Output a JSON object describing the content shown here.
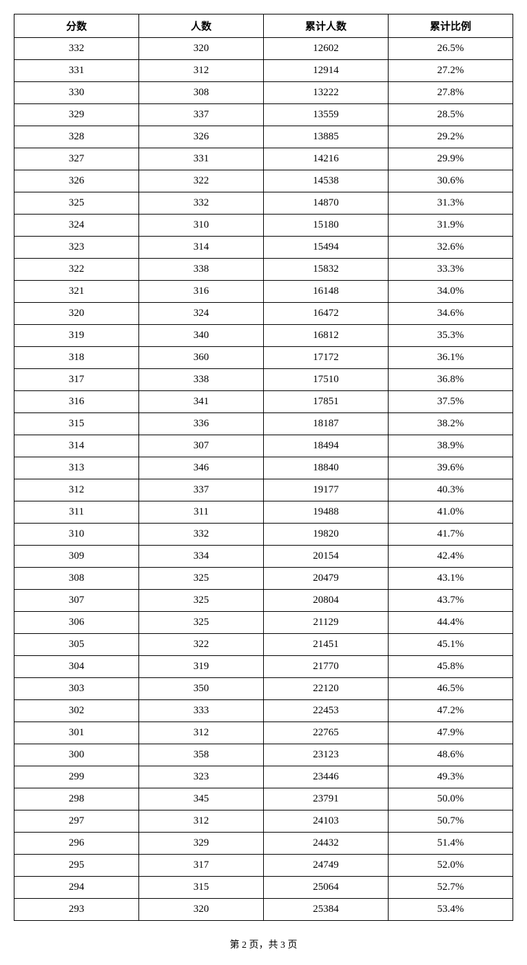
{
  "table": {
    "columns": [
      "分数",
      "人数",
      "累计人数",
      "累计比例"
    ],
    "column_widths": [
      "25%",
      "25%",
      "25%",
      "25%"
    ],
    "text_color": "#000000",
    "border_color": "#000000",
    "background_color": "#ffffff",
    "header_fontsize": 15,
    "cell_fontsize": 15,
    "rows": [
      [
        "332",
        "320",
        "12602",
        "26.5%"
      ],
      [
        "331",
        "312",
        "12914",
        "27.2%"
      ],
      [
        "330",
        "308",
        "13222",
        "27.8%"
      ],
      [
        "329",
        "337",
        "13559",
        "28.5%"
      ],
      [
        "328",
        "326",
        "13885",
        "29.2%"
      ],
      [
        "327",
        "331",
        "14216",
        "29.9%"
      ],
      [
        "326",
        "322",
        "14538",
        "30.6%"
      ],
      [
        "325",
        "332",
        "14870",
        "31.3%"
      ],
      [
        "324",
        "310",
        "15180",
        "31.9%"
      ],
      [
        "323",
        "314",
        "15494",
        "32.6%"
      ],
      [
        "322",
        "338",
        "15832",
        "33.3%"
      ],
      [
        "321",
        "316",
        "16148",
        "34.0%"
      ],
      [
        "320",
        "324",
        "16472",
        "34.6%"
      ],
      [
        "319",
        "340",
        "16812",
        "35.3%"
      ],
      [
        "318",
        "360",
        "17172",
        "36.1%"
      ],
      [
        "317",
        "338",
        "17510",
        "36.8%"
      ],
      [
        "316",
        "341",
        "17851",
        "37.5%"
      ],
      [
        "315",
        "336",
        "18187",
        "38.2%"
      ],
      [
        "314",
        "307",
        "18494",
        "38.9%"
      ],
      [
        "313",
        "346",
        "18840",
        "39.6%"
      ],
      [
        "312",
        "337",
        "19177",
        "40.3%"
      ],
      [
        "311",
        "311",
        "19488",
        "41.0%"
      ],
      [
        "310",
        "332",
        "19820",
        "41.7%"
      ],
      [
        "309",
        "334",
        "20154",
        "42.4%"
      ],
      [
        "308",
        "325",
        "20479",
        "43.1%"
      ],
      [
        "307",
        "325",
        "20804",
        "43.7%"
      ],
      [
        "306",
        "325",
        "21129",
        "44.4%"
      ],
      [
        "305",
        "322",
        "21451",
        "45.1%"
      ],
      [
        "304",
        "319",
        "21770",
        "45.8%"
      ],
      [
        "303",
        "350",
        "22120",
        "46.5%"
      ],
      [
        "302",
        "333",
        "22453",
        "47.2%"
      ],
      [
        "301",
        "312",
        "22765",
        "47.9%"
      ],
      [
        "300",
        "358",
        "23123",
        "48.6%"
      ],
      [
        "299",
        "323",
        "23446",
        "49.3%"
      ],
      [
        "298",
        "345",
        "23791",
        "50.0%"
      ],
      [
        "297",
        "312",
        "24103",
        "50.7%"
      ],
      [
        "296",
        "329",
        "24432",
        "51.4%"
      ],
      [
        "295",
        "317",
        "24749",
        "52.0%"
      ],
      [
        "294",
        "315",
        "25064",
        "52.7%"
      ],
      [
        "293",
        "320",
        "25384",
        "53.4%"
      ]
    ]
  },
  "footer": {
    "text": "第 2 页，共 3 页"
  }
}
